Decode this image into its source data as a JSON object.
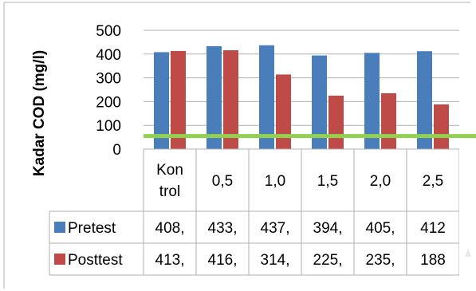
{
  "chart_data": {
    "type": "bar",
    "ylabel": "Kadar COD (mg/l)",
    "ylim": [
      0,
      500
    ],
    "yticks": [
      "500",
      "400",
      "300",
      "200",
      "100",
      "0"
    ],
    "categories": [
      [
        "Kon",
        "trol"
      ],
      [
        "0,5"
      ],
      [
        "1,0"
      ],
      [
        "1,5"
      ],
      [
        "2,0"
      ],
      [
        "2,5"
      ]
    ],
    "series": [
      {
        "name": "Pretest",
        "color": "#4a7ebb",
        "values": [
          408,
          433,
          437,
          394,
          405,
          412
        ],
        "labels": [
          "408,",
          "433,",
          "437,",
          "394,",
          "405,",
          "412"
        ]
      },
      {
        "name": "Posttest",
        "color": "#be4b48",
        "values": [
          413,
          416,
          314,
          225,
          235,
          188
        ],
        "labels": [
          "413,",
          "416,",
          "314,",
          "225,",
          "235,",
          "188"
        ]
      }
    ],
    "reference_line": {
      "value": 55,
      "color": "#92d050"
    },
    "grid": true,
    "legend": "data-table"
  }
}
